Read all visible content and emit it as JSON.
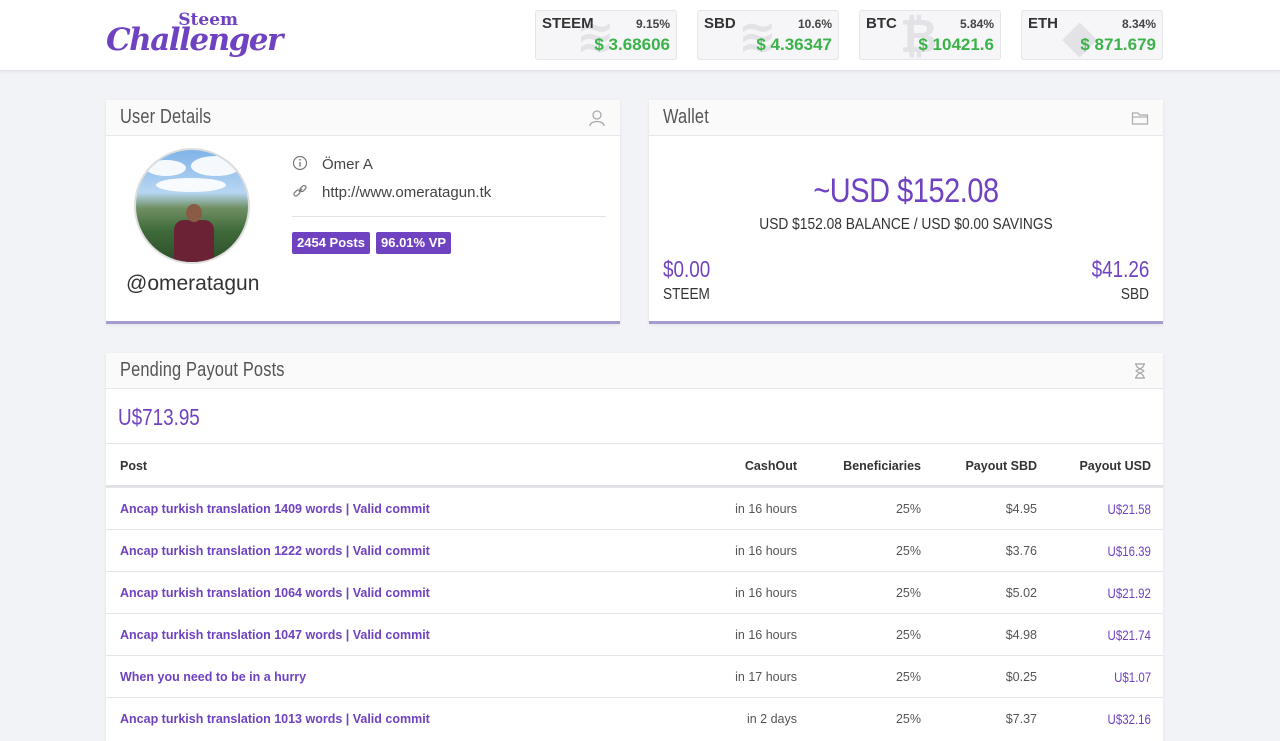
{
  "header": {
    "logo_top": "Steem",
    "logo_main": "Challenger",
    "tickers": [
      {
        "symbol": "STEEM",
        "change": "9.15%",
        "price": "$ 3.68606",
        "icon": "steem-icon",
        "glyph": "≋"
      },
      {
        "symbol": "SBD",
        "change": "10.6%",
        "price": "$ 4.36347",
        "icon": "steem-icon",
        "glyph": "≋"
      },
      {
        "symbol": "BTC",
        "change": "5.84%",
        "price": "$ 10421.6",
        "icon": "bitcoin-icon",
        "glyph": "₿"
      },
      {
        "symbol": "ETH",
        "change": "8.34%",
        "price": "$ 871.679",
        "icon": "ethereum-icon",
        "glyph": "◆"
      }
    ]
  },
  "user": {
    "title": "User Details",
    "name": "Ömer A",
    "website": "http://www.omeratagun.tk",
    "username": "@omeratagun",
    "posts_badge": "2454 Posts",
    "vp_badge": "96.01% VP"
  },
  "wallet": {
    "title": "Wallet",
    "total": "~USD $152.08",
    "summary": "USD $152.08 BALANCE / USD $0.00 SAVINGS",
    "steem_amount": "$0.00",
    "steem_label": "STEEM",
    "sbd_amount": "$41.26",
    "sbd_label": "SBD"
  },
  "pending": {
    "title": "Pending Payout Posts",
    "total": "U$713.95",
    "columns": {
      "post": "Post",
      "cashout": "CashOut",
      "beneficiaries": "Beneficiaries",
      "payout_sbd": "Payout SBD",
      "payout_usd": "Payout USD"
    },
    "rows": [
      {
        "post": "Ancap turkish translation 1409 words | Valid commit",
        "cashout": "in 16 hours",
        "beneficiaries": "25%",
        "payout_sbd": "$4.95",
        "payout_usd": "U$21.58"
      },
      {
        "post": "Ancap turkish translation 1222 words | Valid commit",
        "cashout": "in 16 hours",
        "beneficiaries": "25%",
        "payout_sbd": "$3.76",
        "payout_usd": "U$16.39"
      },
      {
        "post": "Ancap turkish translation 1064 words | Valid commit",
        "cashout": "in 16 hours",
        "beneficiaries": "25%",
        "payout_sbd": "$5.02",
        "payout_usd": "U$21.92"
      },
      {
        "post": "Ancap turkish translation 1047 words | Valid commit",
        "cashout": "in 16 hours",
        "beneficiaries": "25%",
        "payout_sbd": "$4.98",
        "payout_usd": "U$21.74"
      },
      {
        "post": "When you need to be in a hurry",
        "cashout": "in 17 hours",
        "beneficiaries": "25%",
        "payout_sbd": "$0.25",
        "payout_usd": "U$1.07"
      },
      {
        "post": "Ancap turkish translation 1013 words | Valid commit",
        "cashout": "in 2 days",
        "beneficiaries": "25%",
        "payout_sbd": "$7.37",
        "payout_usd": "U$32.16"
      }
    ]
  }
}
